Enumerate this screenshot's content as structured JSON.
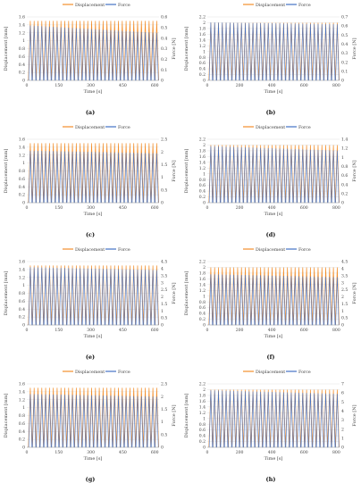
{
  "chart_data": [
    {
      "type": "line",
      "panel_label": "(a)",
      "legend": "top-center",
      "xlabel": "Time [s]",
      "ylabel": "Displacement [mm]",
      "y2label": "Force [N]",
      "xlim": [
        0,
        620
      ],
      "xticks": [
        0,
        150,
        300,
        450,
        600
      ],
      "ylim": [
        0,
        1.6
      ],
      "yticks": [
        0,
        0.2,
        0.4,
        0.6,
        0.8,
        1,
        1.2,
        1.4,
        1.6
      ],
      "y2lim": [
        0,
        0.6
      ],
      "y2ticks": [
        0,
        0.1,
        0.2,
        0.3,
        0.4,
        0.5,
        0.6
      ],
      "cycles": 34,
      "series": [
        {
          "name": "Displacement",
          "axis": "left",
          "color": "#f28e2b",
          "peak": 1.5,
          "trough": 0
        },
        {
          "name": "Force",
          "axis": "right",
          "color": "#4472c4",
          "peak_start": 0.52,
          "peak_end": 0.45,
          "trough": 0
        }
      ]
    },
    {
      "type": "line",
      "panel_label": "(b)",
      "legend": "top-center",
      "xlabel": "Time [s]",
      "ylabel": "Displacement [mm]",
      "y2label": "Force [N]",
      "xlim": [
        0,
        820
      ],
      "xticks": [
        0,
        200,
        400,
        600,
        800
      ],
      "ylim": [
        0,
        2.2
      ],
      "yticks": [
        0,
        0.2,
        0.4,
        0.6,
        0.8,
        1,
        1.2,
        1.4,
        1.6,
        1.8,
        2,
        2.2
      ],
      "y2lim": [
        0,
        0.7
      ],
      "y2ticks": [
        0,
        0.1,
        0.2,
        0.3,
        0.4,
        0.5,
        0.6,
        0.7
      ],
      "cycles": 34,
      "series": [
        {
          "name": "Displacement",
          "axis": "left",
          "color": "#f28e2b",
          "peak": 2.0,
          "trough": 0
        },
        {
          "name": "Force",
          "axis": "right",
          "color": "#4472c4",
          "peak_start": 0.64,
          "peak_end": 0.62,
          "trough": 0
        }
      ]
    },
    {
      "type": "line",
      "panel_label": "(c)",
      "legend": "top-center",
      "xlabel": "Time [s]",
      "ylabel": "Displacement [mm]",
      "y2label": "Force [N]",
      "xlim": [
        0,
        620
      ],
      "xticks": [
        0,
        150,
        300,
        450,
        600
      ],
      "ylim": [
        0,
        1.6
      ],
      "yticks": [
        0,
        0.2,
        0.4,
        0.6,
        0.8,
        1,
        1.2,
        1.4,
        1.6
      ],
      "y2lim": [
        0,
        2.5
      ],
      "y2ticks": [
        0,
        0.5,
        1,
        1.5,
        2,
        2.5
      ],
      "cycles": 34,
      "series": [
        {
          "name": "Displacement",
          "axis": "left",
          "color": "#f28e2b",
          "peak": 1.5,
          "trough": 0
        },
        {
          "name": "Force",
          "axis": "right",
          "color": "#4472c4",
          "peak_start": 2.05,
          "peak_end": 1.95,
          "trough": 0
        }
      ]
    },
    {
      "type": "line",
      "panel_label": "(d)",
      "legend": "top-center",
      "xlabel": "Time [s]",
      "ylabel": "Displacement [mm]",
      "y2label": "Force [N]",
      "xlim": [
        0,
        820
      ],
      "xticks": [
        0,
        200,
        400,
        600,
        800
      ],
      "ylim": [
        0,
        2.2
      ],
      "yticks": [
        0,
        0.2,
        0.4,
        0.6,
        0.8,
        1,
        1.2,
        1.4,
        1.6,
        1.8,
        2,
        2.2
      ],
      "y2lim": [
        0,
        1.4
      ],
      "y2ticks": [
        0,
        0.2,
        0.4,
        0.6,
        0.8,
        1,
        1.2,
        1.4
      ],
      "cycles": 34,
      "series": [
        {
          "name": "Displacement",
          "axis": "left",
          "color": "#f28e2b",
          "peak": 2.0,
          "trough": 0
        },
        {
          "name": "Force",
          "axis": "right",
          "color": "#4472c4",
          "peak_start": 1.25,
          "peak_end": 1.15,
          "trough": 0
        }
      ]
    },
    {
      "type": "line",
      "panel_label": "(e)",
      "legend": "top-center",
      "xlabel": "Time [s]",
      "ylabel": "Displacement [mm]",
      "y2label": "Force [N]",
      "xlim": [
        0,
        620
      ],
      "xticks": [
        0,
        150,
        300,
        450,
        600
      ],
      "ylim": [
        0,
        1.6
      ],
      "yticks": [
        0,
        0.2,
        0.4,
        0.6,
        0.8,
        1,
        1.2,
        1.4,
        1.6
      ],
      "y2lim": [
        0,
        4.5
      ],
      "y2ticks": [
        0,
        0.5,
        1,
        1.5,
        2,
        2.5,
        3,
        3.5,
        4,
        4.5
      ],
      "cycles": 34,
      "series": [
        {
          "name": "Displacement",
          "axis": "left",
          "color": "#f28e2b",
          "peak": 1.5,
          "trough": 0
        },
        {
          "name": "Force",
          "axis": "right",
          "color": "#4472c4",
          "peak_start": 4.1,
          "peak_end": 3.9,
          "trough": 0
        }
      ]
    },
    {
      "type": "line",
      "panel_label": "(f)",
      "legend": "top-center",
      "xlabel": "Time [s]",
      "ylabel": "Displacement [mm]",
      "y2label": "Force [N]",
      "xlim": [
        0,
        820
      ],
      "xticks": [
        0,
        200,
        400,
        600,
        800
      ],
      "ylim": [
        0,
        2.2
      ],
      "yticks": [
        0,
        0.2,
        0.4,
        0.6,
        0.8,
        1,
        1.2,
        1.4,
        1.6,
        1.8,
        2,
        2.2
      ],
      "y2lim": [
        0,
        4.5
      ],
      "y2ticks": [
        0,
        0.5,
        1,
        1.5,
        2,
        2.5,
        3,
        3.5,
        4,
        4.5
      ],
      "cycles": 34,
      "series": [
        {
          "name": "Displacement",
          "axis": "left",
          "color": "#f28e2b",
          "peak": 2.0,
          "trough": 0
        },
        {
          "name": "Force",
          "axis": "right",
          "color": "#4472c4",
          "peak_start": 3.6,
          "peak_end": 3.4,
          "trough": 0
        }
      ]
    },
    {
      "type": "line",
      "panel_label": "(g)",
      "legend": "top-center",
      "xlabel": "Time [s]",
      "ylabel": "Displacement [mm]",
      "y2label": "Force [N]",
      "xlim": [
        0,
        620
      ],
      "xticks": [
        0,
        150,
        300,
        450,
        600
      ],
      "ylim": [
        0,
        1.6
      ],
      "yticks": [
        0,
        0.2,
        0.4,
        0.6,
        0.8,
        1,
        1.2,
        1.4,
        1.6
      ],
      "y2lim": [
        0,
        2.5
      ],
      "y2ticks": [
        0,
        0.5,
        1,
        1.5,
        2,
        2.5
      ],
      "cycles": 34,
      "series": [
        {
          "name": "Displacement",
          "axis": "left",
          "color": "#f28e2b",
          "peak": 1.5,
          "trough": 0
        },
        {
          "name": "Force",
          "axis": "right",
          "color": "#4472c4",
          "peak_start": 2.1,
          "peak_end": 2.0,
          "trough": 0
        }
      ]
    },
    {
      "type": "line",
      "panel_label": "(h)",
      "legend": "top-center",
      "xlabel": "Time [s]",
      "ylabel": "Displacement [mm]",
      "y2label": "Force [N]",
      "xlim": [
        0,
        820
      ],
      "xticks": [
        0,
        200,
        400,
        600,
        800
      ],
      "ylim": [
        0,
        2.2
      ],
      "yticks": [
        0,
        0.2,
        0.4,
        0.6,
        0.8,
        1,
        1.2,
        1.4,
        1.6,
        1.8,
        2,
        2.2
      ],
      "y2lim": [
        0,
        7
      ],
      "y2ticks": [
        0,
        1,
        2,
        3,
        4,
        5,
        6,
        7
      ],
      "cycles": 34,
      "series": [
        {
          "name": "Displacement",
          "axis": "left",
          "color": "#f28e2b",
          "peak": 2.0,
          "trough": 0
        },
        {
          "name": "Force",
          "axis": "right",
          "color": "#4472c4",
          "peak_start": 6.3,
          "peak_end": 5.9,
          "trough": 0
        }
      ]
    }
  ]
}
